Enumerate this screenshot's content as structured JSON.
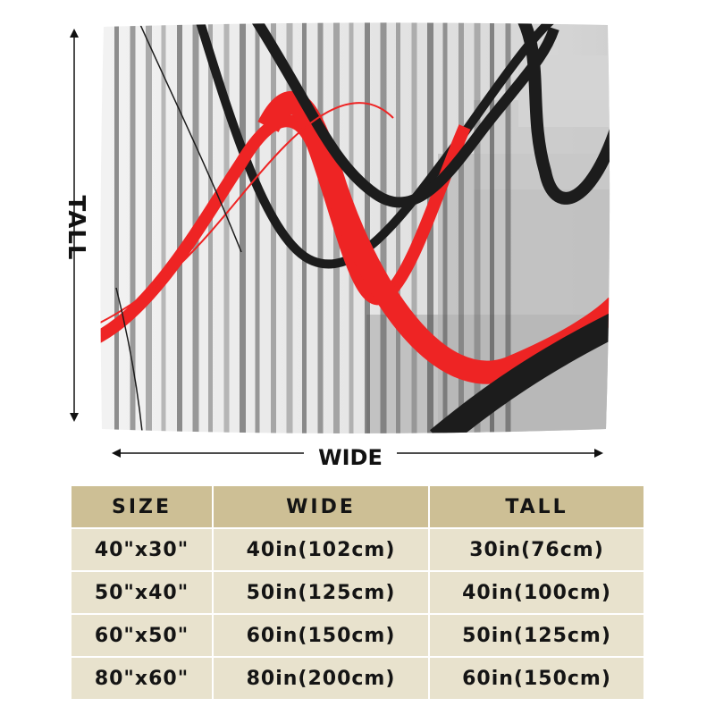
{
  "dimensions": {
    "tall_label": "TALL",
    "wide_label": "WIDE"
  },
  "product_image": {
    "colors": {
      "red": "#ee2424",
      "black": "#1c1c1c",
      "grey": "#c8c8c8"
    }
  },
  "size_table": {
    "headers": [
      "SIZE",
      "WIDE",
      "TALL"
    ],
    "rows": [
      {
        "size": "40\"x30\"",
        "wide": "40in(102cm)",
        "tall": "30in(76cm)"
      },
      {
        "size": "50\"x40\"",
        "wide": "50in(125cm)",
        "tall": "40in(100cm)"
      },
      {
        "size": "60\"x50\"",
        "wide": "60in(150cm)",
        "tall": "50in(125cm)"
      },
      {
        "size": "80\"x60\"",
        "wide": "80in(200cm)",
        "tall": "60in(150cm)"
      }
    ],
    "colors": {
      "header_bg": "#cdbf95",
      "row_bg": "#e8e2cd"
    }
  }
}
